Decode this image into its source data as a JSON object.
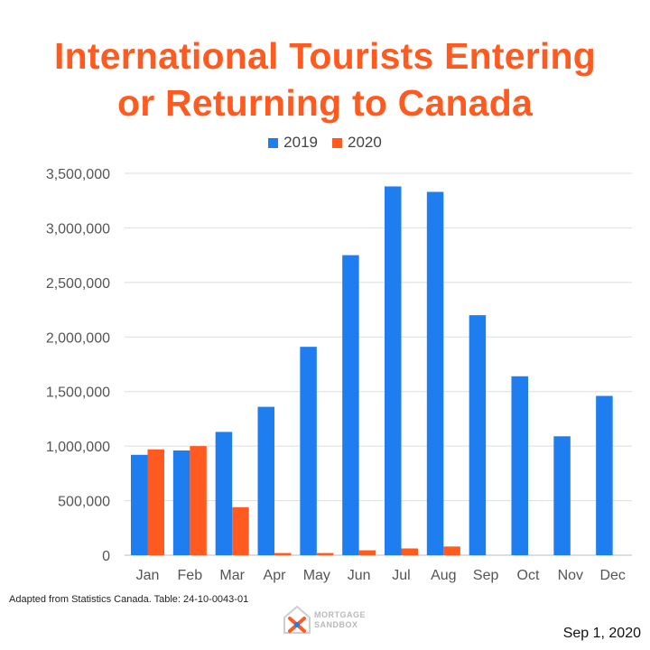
{
  "title_line1": "International Tourists Entering",
  "title_line2": "or Returning to Canada",
  "colors": {
    "title": "#ff5a1f",
    "series_2019": "#1e7ef0",
    "series_2020": "#ff5a1f",
    "grid": "#dddddd"
  },
  "source": "Adapted from Statistics Canada. Table: 24-10-0043-01",
  "logo": {
    "line1": "MORTGAGE",
    "line2": "SANDBOX",
    "icon": "house-x-logo-icon"
  },
  "date": "Sep 1, 2020",
  "chart_data": {
    "type": "bar",
    "categories": [
      "Jan",
      "Feb",
      "Mar",
      "Apr",
      "May",
      "Jun",
      "Jul",
      "Aug",
      "Sep",
      "Oct",
      "Nov",
      "Dec"
    ],
    "series": [
      {
        "name": "2019",
        "values": [
          920000,
          960000,
          1130000,
          1360000,
          1910000,
          2750000,
          3380000,
          3330000,
          2200000,
          1640000,
          1090000,
          1460000
        ]
      },
      {
        "name": "2020",
        "values": [
          970000,
          1000000,
          440000,
          20000,
          20000,
          45000,
          62000,
          80000,
          null,
          null,
          null,
          null
        ]
      }
    ],
    "ylim": [
      0,
      3500000
    ],
    "yticks": [
      "0",
      "500,000",
      "1,000,000",
      "1,500,000",
      "2,000,000",
      "2,500,000",
      "3,000,000",
      "3,500,000"
    ],
    "ytick_values": [
      0,
      500000,
      1000000,
      1500000,
      2000000,
      2500000,
      3000000,
      3500000
    ],
    "grid": true,
    "legend_position": "top-center"
  }
}
